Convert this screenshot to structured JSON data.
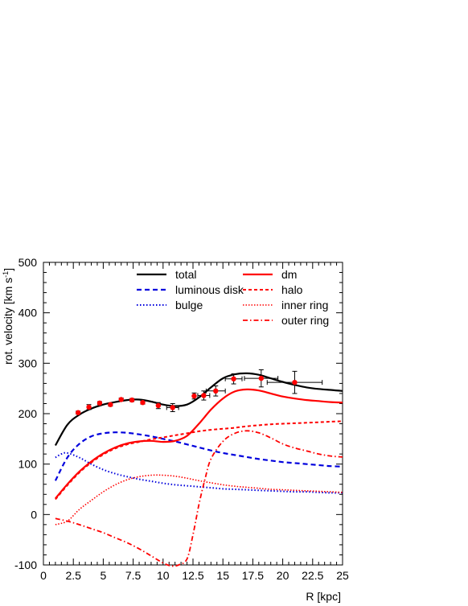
{
  "chart_data": {
    "type": "line",
    "xlabel": "R [kpc]",
    "ylabel_main": "rot. velocity [km s",
    "ylabel_sup": "-1",
    "ylabel_end": "]",
    "xlim": [
      0,
      25
    ],
    "ylim": [
      -100,
      500
    ],
    "xticks": [
      0,
      2.5,
      5,
      7.5,
      10,
      12.5,
      15,
      17.5,
      20,
      22.5,
      25
    ],
    "xtick_labels": [
      "0",
      "2.5",
      "5",
      "7.5",
      "10",
      "12.5",
      "15",
      "17.5",
      "20",
      "22.5",
      "25"
    ],
    "yticks": [
      -100,
      0,
      100,
      200,
      300,
      400,
      500
    ],
    "ytick_labels": [
      "-100",
      "0",
      "100",
      "200",
      "300",
      "400",
      "500"
    ],
    "grid": false,
    "legend_position": "top-right",
    "series": [
      {
        "name": "total",
        "color": "#000000",
        "dash": "solid",
        "width": 2.2,
        "x": [
          1,
          2,
          3,
          4,
          5,
          6,
          7,
          8,
          9,
          10,
          11,
          12,
          13,
          14,
          15,
          16,
          17,
          18,
          19,
          20,
          21,
          22,
          23,
          24,
          25
        ],
        "y": [
          137,
          178,
          198,
          210,
          218,
          223,
          227,
          228,
          224,
          218,
          215,
          218,
          232,
          252,
          270,
          278,
          280,
          277,
          270,
          263,
          257,
          252,
          249,
          247,
          245
        ]
      },
      {
        "name": "luminous disk",
        "color": "#0000dd",
        "dash": "6,4",
        "width": 2.2,
        "x": [
          1,
          2,
          3,
          4,
          5,
          6,
          7,
          8,
          9,
          10,
          11,
          12,
          13,
          14,
          15,
          16,
          17,
          18,
          19,
          20,
          21,
          22,
          23,
          24,
          25
        ],
        "y": [
          67,
          113,
          140,
          155,
          161,
          163,
          162,
          159,
          155,
          150,
          145,
          139,
          133,
          127,
          122,
          118,
          114,
          110,
          107,
          104,
          102,
          100,
          98,
          96,
          95
        ]
      },
      {
        "name": "bulge",
        "color": "#0000dd",
        "dash": "1.5,2.5",
        "width": 2,
        "x": [
          1,
          1.5,
          2,
          3,
          4,
          5,
          6,
          7,
          8,
          9,
          10,
          11,
          12,
          13,
          14,
          15,
          16,
          17,
          18,
          19,
          20,
          21,
          22,
          23,
          24,
          25
        ],
        "y": [
          113,
          120,
          122,
          113,
          100,
          89,
          81,
          75,
          70,
          66,
          62,
          59,
          57,
          55,
          53,
          51,
          50,
          49,
          48,
          47,
          46,
          45,
          45,
          44,
          43,
          43
        ]
      },
      {
        "name": "dm",
        "color": "#ff0000",
        "dash": "solid",
        "width": 2.2,
        "x": [
          1,
          2,
          3,
          4,
          5,
          6,
          7,
          8,
          9,
          10,
          11,
          12,
          13,
          14,
          15,
          16,
          17,
          18,
          19,
          20,
          21,
          22,
          23,
          24,
          25
        ],
        "y": [
          32,
          60,
          85,
          105,
          121,
          133,
          141,
          145,
          146,
          144,
          146,
          156,
          180,
          208,
          230,
          244,
          248,
          246,
          240,
          234,
          230,
          227,
          225,
          223,
          222
        ]
      },
      {
        "name": "halo",
        "color": "#ff0000",
        "dash": "4,3",
        "width": 2,
        "x": [
          1,
          2,
          3,
          4,
          5,
          6,
          7,
          8,
          9,
          10,
          11,
          12,
          13,
          14,
          15,
          16,
          17,
          18,
          19,
          20,
          21,
          22,
          23,
          24,
          25
        ],
        "y": [
          30,
          58,
          83,
          103,
          119,
          131,
          139,
          144,
          149,
          153,
          157,
          161,
          165,
          168,
          170,
          172,
          175,
          177,
          179,
          180,
          181,
          182,
          183,
          184,
          185
        ]
      },
      {
        "name": "inner ring",
        "color": "#ff0000",
        "dash": "1.5,2",
        "width": 1.6,
        "x": [
          1,
          2,
          3,
          4,
          5,
          6,
          7,
          8,
          9,
          10,
          11,
          12,
          13,
          14,
          15,
          16,
          17,
          18,
          19,
          20,
          21,
          22,
          23,
          24,
          25
        ],
        "y": [
          -20,
          -13,
          10,
          28,
          45,
          59,
          69,
          75,
          78,
          78,
          76,
          72,
          67,
          63,
          59,
          56,
          54,
          52,
          50,
          49,
          48,
          47,
          46,
          45,
          44
        ]
      },
      {
        "name": "outer ring",
        "color": "#ff0000",
        "dash": "6,3,1.5,3",
        "width": 1.8,
        "x": [
          1,
          2,
          3,
          4,
          5,
          6,
          7,
          8,
          9,
          10,
          10.7,
          11.3,
          12,
          12.5,
          13,
          13.5,
          14,
          15,
          16,
          17,
          18,
          19,
          20,
          21,
          22,
          23,
          24,
          25
        ],
        "y": [
          -8,
          -13,
          -20,
          -28,
          -36,
          -46,
          -56,
          -68,
          -82,
          -96,
          -102,
          -100,
          -88,
          -40,
          20,
          70,
          110,
          145,
          161,
          166,
          162,
          152,
          140,
          132,
          126,
          120,
          116,
          114
        ]
      }
    ],
    "observations": {
      "name": "data",
      "color": "#ff0000",
      "points": [
        {
          "x": 2.9,
          "y": 202,
          "yerr": 3,
          "xerr": 0
        },
        {
          "x": 3.8,
          "y": 213,
          "yerr": 5,
          "xerr": 0
        },
        {
          "x": 4.7,
          "y": 221,
          "yerr": 3,
          "xerr": 0
        },
        {
          "x": 5.6,
          "y": 218,
          "yerr": 3,
          "xerr": 0
        },
        {
          "x": 6.5,
          "y": 228,
          "yerr": 3,
          "xerr": 0
        },
        {
          "x": 7.4,
          "y": 227,
          "yerr": 3,
          "xerr": 0
        },
        {
          "x": 8.3,
          "y": 222,
          "yerr": 3,
          "xerr": 0
        },
        {
          "x": 9.6,
          "y": 216,
          "yerr": 6,
          "xerr": 0
        },
        {
          "x": 10.8,
          "y": 212,
          "yerr": 8,
          "xerr": 0.5
        },
        {
          "x": 12.6,
          "y": 235,
          "yerr": 6,
          "xerr": 0
        },
        {
          "x": 13.4,
          "y": 236,
          "yerr": 9,
          "xerr": 0.5
        },
        {
          "x": 14.4,
          "y": 245,
          "yerr": 10,
          "xerr": 0.8
        },
        {
          "x": 15.9,
          "y": 269,
          "yerr": 10,
          "xerr": 0.7
        },
        {
          "x": 18.2,
          "y": 270,
          "yerr": 17,
          "xerr": 1.4
        },
        {
          "x": 21.0,
          "y": 262,
          "yerr": 22,
          "xerr": 2.3
        }
      ]
    }
  }
}
